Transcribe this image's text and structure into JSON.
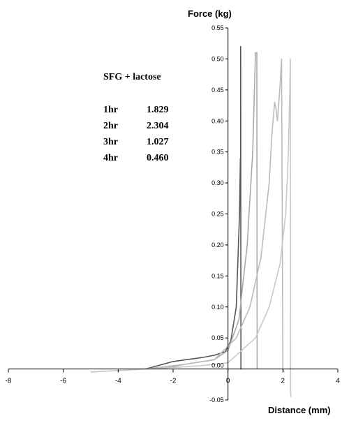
{
  "chart_data": {
    "type": "line",
    "title": "",
    "xlabel": "Distance (mm)",
    "ylabel": "Force (kg)",
    "xlim": [
      -8,
      4
    ],
    "ylim": [
      -0.05,
      0.55
    ],
    "x_ticks": [
      -8,
      -6,
      -4,
      -2,
      0,
      2,
      4
    ],
    "y_ticks": [
      -0.05,
      0.05,
      0.1,
      0.15,
      0.2,
      0.25,
      0.3,
      0.35,
      0.4,
      0.45,
      0.5,
      0.55
    ],
    "x_tick_labels": [
      "-8",
      "-6",
      "-4",
      "-2",
      "0",
      "2",
      "4"
    ],
    "y_tick_labels": [
      "-0.05",
      "0.05",
      "0.10",
      "0.15",
      "0.20",
      "0.25",
      "0.30",
      "0.35",
      "0.40",
      "0.45",
      "0.50",
      "0.55"
    ],
    "origin_label": "0.00",
    "colors": [
      "#555555",
      "#aaaaaa",
      "#bbbbbb",
      "#c8c8c8"
    ],
    "series": [
      {
        "x": [
          -3.0,
          -2.0,
          -1.0,
          -0.5,
          -0.1,
          0.1,
          0.3,
          0.42,
          0.45,
          0.46,
          0.46,
          0.47,
          0.5
        ],
        "y": [
          0.0,
          0.012,
          0.018,
          0.022,
          0.028,
          0.045,
          0.1,
          0.25,
          0.34,
          0.33,
          0.52,
          0.0,
          0.0
        ]
      },
      {
        "x": [
          -2.5,
          -1.5,
          -0.5,
          0.0,
          0.4,
          0.7,
          0.9,
          1.0,
          1.05,
          1.06
        ],
        "y": [
          0.0,
          0.008,
          0.015,
          0.03,
          0.08,
          0.2,
          0.35,
          0.51,
          0.51,
          0.0
        ]
      },
      {
        "x": [
          -5.0,
          -3.0,
          -1.5,
          -0.5,
          0.3,
          0.8,
          1.2,
          1.5,
          1.6,
          1.7,
          1.75,
          1.8,
          1.9,
          1.95,
          2.0,
          2.05
        ],
        "y": [
          -0.005,
          0.0,
          0.008,
          0.015,
          0.05,
          0.1,
          0.18,
          0.3,
          0.38,
          0.43,
          0.42,
          0.4,
          0.46,
          0.5,
          0.0,
          -0.005
        ]
      },
      {
        "x": [
          -5.0,
          -3.0,
          -1.0,
          0.0,
          1.0,
          1.5,
          1.9,
          2.1,
          2.2,
          2.25,
          2.27,
          2.28,
          2.28,
          2.3
        ],
        "y": [
          -0.005,
          0.0,
          0.005,
          0.01,
          0.05,
          0.1,
          0.17,
          0.25,
          0.35,
          0.45,
          0.5,
          0.0,
          -0.04,
          -0.045
        ]
      }
    ],
    "annotations": {
      "heading": "SFG + lactose",
      "rows": [
        {
          "label": "1hr",
          "value": "1.829"
        },
        {
          "label": "2hr",
          "value": "2.304"
        },
        {
          "label": "3hr",
          "value": "1.027"
        },
        {
          "label": "4hr",
          "value": "0.460"
        }
      ]
    }
  }
}
